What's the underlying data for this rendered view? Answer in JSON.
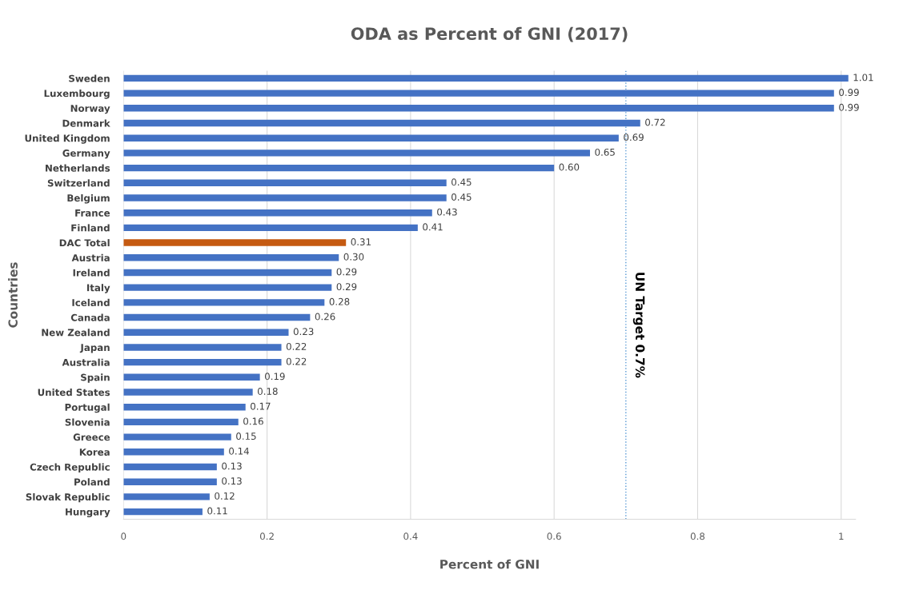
{
  "chart_data": {
    "type": "bar",
    "orientation": "horizontal",
    "title": "ODA as Percent of GNI (2017)",
    "xlabel": "Percent of GNI",
    "ylabel": "Countries",
    "categories": [
      "Sweden",
      "Luxembourg",
      "Norway",
      "Denmark",
      "United Kingdom",
      "Germany",
      "Netherlands",
      "Switzerland",
      "Belgium",
      "France",
      "Finland",
      "DAC Total",
      "Austria",
      "Ireland",
      "Italy",
      "Iceland",
      "Canada",
      "New Zealand",
      "Japan",
      "Australia",
      "Spain",
      "United States",
      "Portugal",
      "Slovenia",
      "Greece",
      "Korea",
      "Czech Republic",
      "Poland",
      "Slovak Republic",
      "Hungary"
    ],
    "values": [
      1.01,
      0.99,
      0.99,
      0.72,
      0.69,
      0.65,
      0.6,
      0.45,
      0.45,
      0.43,
      0.41,
      0.31,
      0.3,
      0.29,
      0.29,
      0.28,
      0.26,
      0.23,
      0.22,
      0.22,
      0.19,
      0.18,
      0.17,
      0.16,
      0.15,
      0.14,
      0.13,
      0.13,
      0.12,
      0.11
    ],
    "value_labels": [
      "1.01",
      "0.99",
      "0.99",
      "0.72",
      "0.69",
      "0.65",
      "0.60",
      "0.45",
      "0.45",
      "0.43",
      "0.41",
      "0.31",
      "0.30",
      "0.29",
      "0.29",
      "0.28",
      "0.26",
      "0.23",
      "0.22",
      "0.22",
      "0.19",
      "0.18",
      "0.17",
      "0.16",
      "0.15",
      "0.14",
      "0.13",
      "0.13",
      "0.12",
      "0.11"
    ],
    "colors": [
      "#4472c4",
      "#4472c4",
      "#4472c4",
      "#4472c4",
      "#4472c4",
      "#4472c4",
      "#4472c4",
      "#4472c4",
      "#4472c4",
      "#4472c4",
      "#4472c4",
      "#c55a11",
      "#4472c4",
      "#4472c4",
      "#4472c4",
      "#4472c4",
      "#4472c4",
      "#4472c4",
      "#4472c4",
      "#4472c4",
      "#4472c4",
      "#4472c4",
      "#4472c4",
      "#4472c4",
      "#4472c4",
      "#4472c4",
      "#4472c4",
      "#4472c4",
      "#4472c4",
      "#4472c4"
    ],
    "xlim": [
      0,
      1.02
    ],
    "xticks": [
      0,
      0.2,
      0.4,
      0.6,
      0.8,
      1
    ],
    "grid": "x",
    "ref_lines": [
      {
        "axis": "x",
        "value": 0.7,
        "label": "UN Target 0.7%",
        "color": "#5b9bd5",
        "line_style": "dotted"
      }
    ]
  }
}
